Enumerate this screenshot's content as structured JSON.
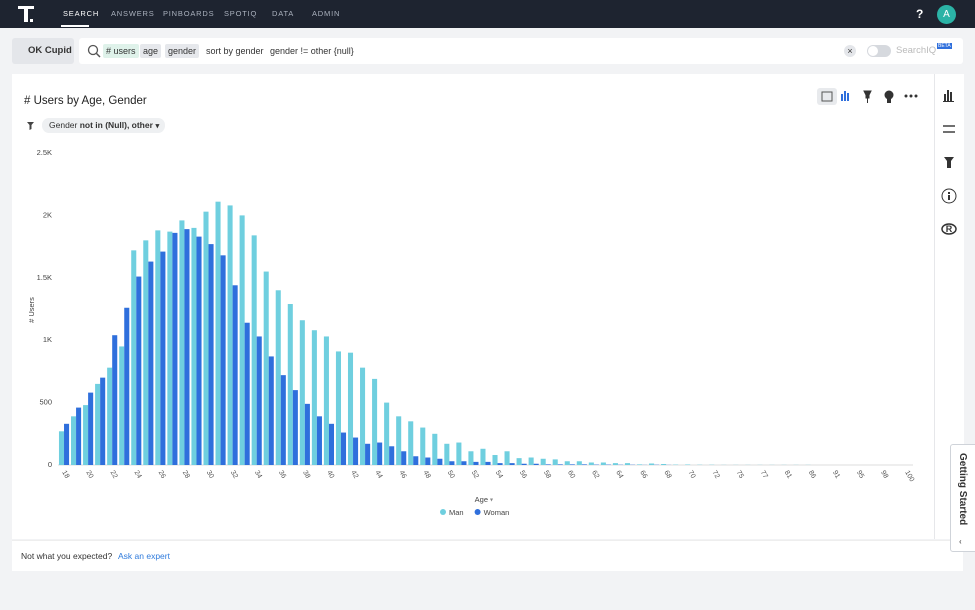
{
  "nav": {
    "items": [
      "SEARCH",
      "ANSWERS",
      "PINBOARDS",
      "SPOTIQ",
      "DATA",
      "ADMIN"
    ],
    "help": "?",
    "avatar": "A"
  },
  "search": {
    "source": "OK Cupid",
    "tokens": [
      "# users",
      "age",
      "gender",
      "sort by gender",
      "gender != other {null}"
    ],
    "searchiq": "SearchIQ",
    "beta": "BETA"
  },
  "chart_data": {
    "type": "bar",
    "title": "# Users by Age, Gender",
    "filter_field": "Gender",
    "filter_condition": "not in (Null), other",
    "x_label": "Age",
    "y_label": "# Users",
    "categories": [
      "18",
      null,
      "20",
      null,
      "22",
      null,
      "24",
      null,
      "26",
      null,
      "28",
      null,
      "30",
      null,
      "32",
      null,
      "34",
      null,
      "36",
      null,
      "38",
      null,
      "40",
      null,
      "42",
      null,
      "44",
      null,
      "46",
      null,
      "48",
      null,
      "50",
      null,
      "52",
      null,
      "54",
      null,
      "56",
      null,
      "58",
      null,
      "60",
      null,
      "62",
      null,
      "64",
      null,
      "66",
      null,
      "68",
      null,
      "70",
      null,
      "72",
      null,
      "75",
      null,
      "77",
      null,
      "81",
      null,
      "86",
      null,
      "91",
      null,
      "95",
      null,
      "98",
      null,
      "100"
    ],
    "series": [
      {
        "name": "Man",
        "color": "#6fcfdf",
        "values": [
          270,
          390,
          480,
          650,
          780,
          950,
          1720,
          1800,
          1880,
          1870,
          1960,
          1900,
          2030,
          2110,
          2080,
          2000,
          1840,
          1550,
          1400,
          1290,
          1160,
          1080,
          1030,
          910,
          900,
          780,
          690,
          500,
          390,
          350,
          300,
          250,
          170,
          180,
          110,
          130,
          80,
          110,
          55,
          60,
          50,
          45,
          30,
          30,
          20,
          20,
          15,
          15,
          5,
          12,
          8,
          3,
          4,
          2,
          2,
          1,
          1,
          1,
          1,
          1,
          1,
          1,
          1,
          0,
          0,
          0,
          0,
          0,
          0,
          0,
          0
        ]
      },
      {
        "name": "Woman",
        "color": "#2f6fdc",
        "values": [
          330,
          460,
          580,
          700,
          1040,
          1260,
          1510,
          1630,
          1710,
          1860,
          1890,
          1830,
          1770,
          1680,
          1440,
          1140,
          1030,
          870,
          720,
          600,
          490,
          390,
          330,
          260,
          220,
          170,
          180,
          150,
          110,
          70,
          60,
          50,
          30,
          30,
          25,
          25,
          15,
          15,
          10,
          10,
          5,
          5,
          5,
          5,
          3,
          3,
          2,
          2,
          1,
          2,
          1,
          0,
          0,
          0,
          0,
          0,
          0,
          0,
          0,
          0,
          0,
          0,
          0,
          0,
          0,
          0,
          0,
          0,
          0,
          0,
          0
        ]
      }
    ],
    "ylim": [
      0,
      2500
    ],
    "yticks": [
      0,
      500,
      {
        "value": 1000,
        "label": "1K"
      },
      {
        "value": 1500,
        "label": "1.5K"
      },
      {
        "value": 2000,
        "label": "2K"
      },
      {
        "value": 2500,
        "label": "2.5K"
      }
    ],
    "grid": false
  },
  "footer": {
    "text": "Not what you expected?",
    "link": "Ask an expert"
  },
  "getting_started": "Getting Started"
}
